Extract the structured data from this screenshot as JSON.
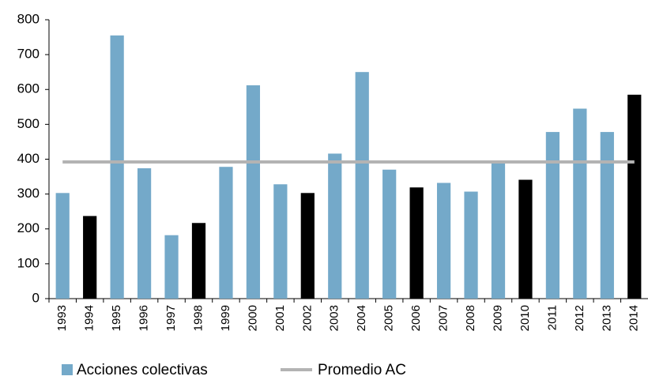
{
  "chart_data": {
    "type": "bar",
    "categories": [
      "1993",
      "1994",
      "1995",
      "1996",
      "1997",
      "1998",
      "1999",
      "2000",
      "2001",
      "2002",
      "2003",
      "2004",
      "2005",
      "2006",
      "2007",
      "2008",
      "2009",
      "2010",
      "2011",
      "2012",
      "2013",
      "2014"
    ],
    "series": [
      {
        "name": "Acciones colectivas",
        "type": "bar",
        "color": "#74a9c9",
        "colors": [
          "#74a9c9",
          "#000000",
          "#74a9c9",
          "#74a9c9",
          "#74a9c9",
          "#000000",
          "#74a9c9",
          "#74a9c9",
          "#74a9c9",
          "#000000",
          "#74a9c9",
          "#74a9c9",
          "#74a9c9",
          "#000000",
          "#74a9c9",
          "#74a9c9",
          "#74a9c9",
          "#000000",
          "#74a9c9",
          "#74a9c9",
          "#74a9c9",
          "#000000"
        ],
        "values": [
          303,
          237,
          755,
          374,
          182,
          217,
          378,
          612,
          328,
          303,
          416,
          650,
          370,
          319,
          332,
          307,
          390,
          341,
          478,
          545,
          478,
          585
        ]
      },
      {
        "name": "Promedio AC",
        "type": "line",
        "color": "#b3b3b3",
        "values": [
          392,
          392,
          392,
          392,
          392,
          392,
          392,
          392,
          392,
          392,
          392,
          392,
          392,
          392,
          392,
          392,
          392,
          392,
          392,
          392,
          392,
          392
        ]
      }
    ],
    "ylim": [
      0,
      800
    ],
    "yticks": [
      0,
      100,
      200,
      300,
      400,
      500,
      600,
      700,
      800
    ],
    "grid": false
  }
}
